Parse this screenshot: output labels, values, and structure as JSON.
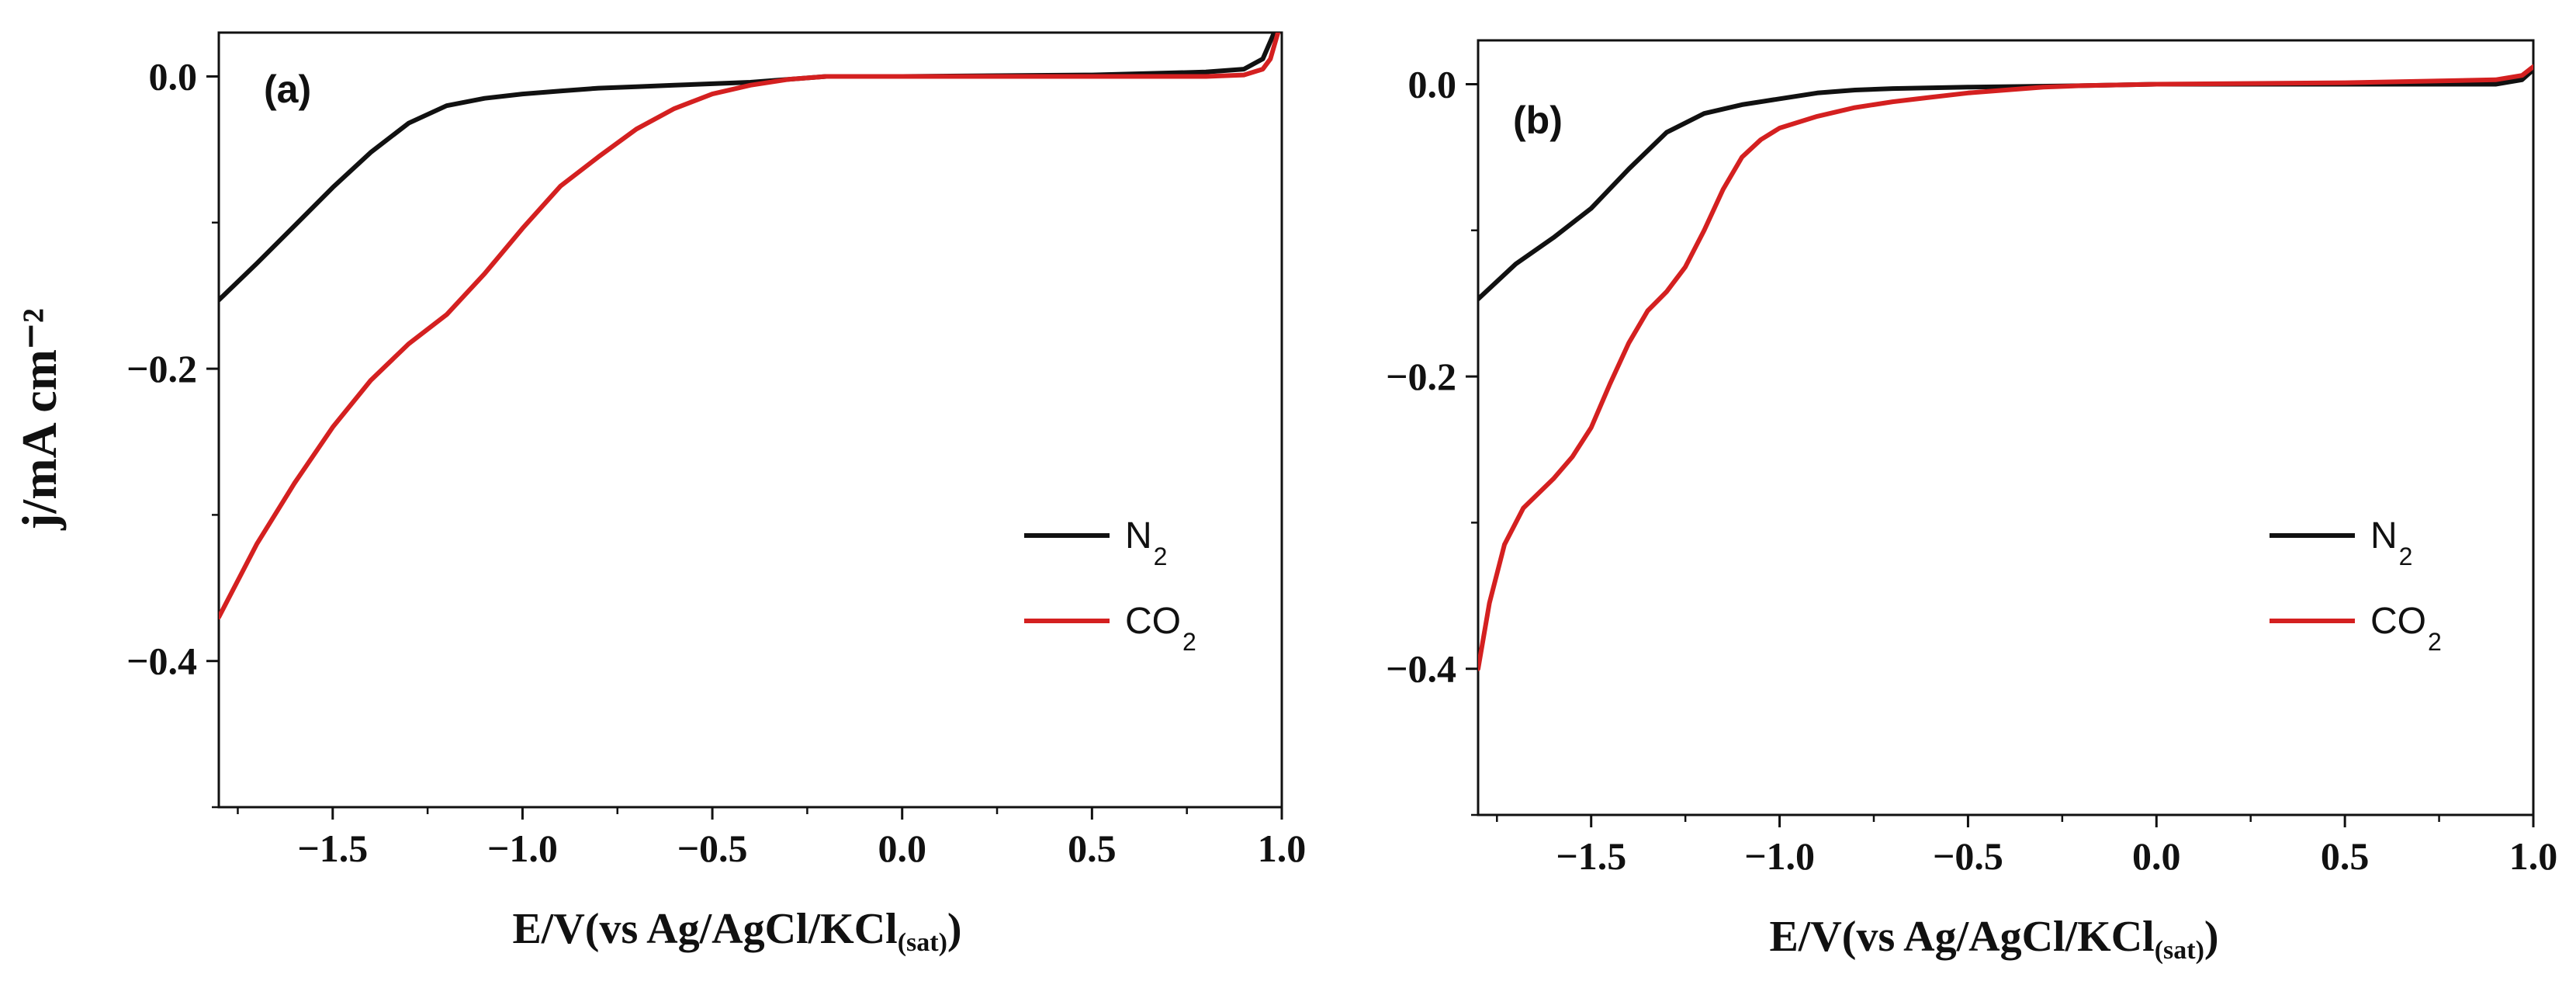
{
  "figure": {
    "shared_ylabel": "j/mA cm⁻²"
  },
  "chart_data": [
    {
      "type": "line",
      "panel_label": "(a)",
      "xlabel": "E/V(vs Ag/AgCl/KCl",
      "xlabel_sub": "(sat)",
      "xlabel_end": ")",
      "ylabel": "j/mA cm⁻²",
      "xlim": [
        -1.8,
        1.0
      ],
      "ylim": [
        -0.5,
        0.03
      ],
      "xticks": [
        -1.5,
        -1.0,
        -0.5,
        0.0,
        0.5,
        1.0
      ],
      "xtick_labels": [
        "−1.5",
        "−1.0",
        "−0.5",
        "0.0",
        "0.5",
        "1.0"
      ],
      "yticks": [
        0.0,
        -0.2,
        -0.4
      ],
      "ytick_labels": [
        "0.0",
        "−0.2",
        "−0.4"
      ],
      "legend": {
        "position": "right-center"
      },
      "series": [
        {
          "name": "N",
          "name_sub": "2",
          "color": "#111111",
          "points": [
            [
              -1.8,
              -0.153
            ],
            [
              -1.7,
              -0.128
            ],
            [
              -1.6,
              -0.102
            ],
            [
              -1.5,
              -0.076
            ],
            [
              -1.4,
              -0.052
            ],
            [
              -1.3,
              -0.032
            ],
            [
              -1.2,
              -0.02
            ],
            [
              -1.1,
              -0.015
            ],
            [
              -1.0,
              -0.012
            ],
            [
              -0.9,
              -0.01
            ],
            [
              -0.8,
              -0.008
            ],
            [
              -0.7,
              -0.007
            ],
            [
              -0.6,
              -0.006
            ],
            [
              -0.5,
              -0.005
            ],
            [
              -0.4,
              -0.004
            ],
            [
              -0.3,
              -0.002
            ],
            [
              -0.2,
              0.0
            ],
            [
              0.0,
              0.0
            ],
            [
              0.5,
              0.001
            ],
            [
              0.8,
              0.003
            ],
            [
              0.9,
              0.005
            ],
            [
              0.95,
              0.012
            ],
            [
              0.98,
              0.03
            ]
          ]
        },
        {
          "name": "CO",
          "name_sub": "2",
          "color": "#d42020",
          "points": [
            [
              -1.8,
              -0.37
            ],
            [
              -1.75,
              -0.345
            ],
            [
              -1.7,
              -0.32
            ],
            [
              -1.6,
              -0.278
            ],
            [
              -1.5,
              -0.24
            ],
            [
              -1.4,
              -0.208
            ],
            [
              -1.3,
              -0.183
            ],
            [
              -1.2,
              -0.163
            ],
            [
              -1.1,
              -0.135
            ],
            [
              -1.0,
              -0.104
            ],
            [
              -0.9,
              -0.075
            ],
            [
              -0.8,
              -0.055
            ],
            [
              -0.7,
              -0.036
            ],
            [
              -0.6,
              -0.022
            ],
            [
              -0.5,
              -0.012
            ],
            [
              -0.4,
              -0.006
            ],
            [
              -0.3,
              -0.002
            ],
            [
              -0.2,
              0.0
            ],
            [
              0.0,
              0.0
            ],
            [
              0.5,
              0.0
            ],
            [
              0.8,
              0.0
            ],
            [
              0.9,
              0.001
            ],
            [
              0.95,
              0.005
            ],
            [
              0.97,
              0.012
            ],
            [
              0.99,
              0.03
            ]
          ]
        }
      ]
    },
    {
      "type": "line",
      "panel_label": "(b)",
      "xlabel": "E/V(vs Ag/AgCl/KCl",
      "xlabel_sub": "(sat)",
      "xlabel_end": ")",
      "ylabel": "",
      "xlim": [
        -1.8,
        1.0
      ],
      "ylim": [
        -0.5,
        0.03
      ],
      "xticks": [
        -1.5,
        -1.0,
        -0.5,
        0.0,
        0.5,
        1.0
      ],
      "xtick_labels": [
        "−1.5",
        "−1.0",
        "−0.5",
        "0.0",
        "0.5",
        "1.0"
      ],
      "yticks": [
        0.0,
        -0.2,
        -0.4
      ],
      "ytick_labels": [
        "0.0",
        "−0.2",
        "−0.4"
      ],
      "legend": {
        "position": "right-center"
      },
      "series": [
        {
          "name": "N",
          "name_sub": "2",
          "color": "#111111",
          "points": [
            [
              -1.8,
              -0.147
            ],
            [
              -1.7,
              -0.123
            ],
            [
              -1.6,
              -0.105
            ],
            [
              -1.5,
              -0.085
            ],
            [
              -1.4,
              -0.058
            ],
            [
              -1.3,
              -0.033
            ],
            [
              -1.2,
              -0.02
            ],
            [
              -1.1,
              -0.014
            ],
            [
              -1.0,
              -0.01
            ],
            [
              -0.9,
              -0.006
            ],
            [
              -0.8,
              -0.004
            ],
            [
              -0.7,
              -0.003
            ],
            [
              -0.5,
              -0.002
            ],
            [
              -0.2,
              -0.001
            ],
            [
              0.0,
              0.0
            ],
            [
              0.5,
              0.0
            ],
            [
              0.9,
              0.0
            ],
            [
              0.97,
              0.003
            ],
            [
              1.0,
              0.01
            ]
          ]
        },
        {
          "name": "CO",
          "name_sub": "2",
          "color": "#d42020",
          "points": [
            [
              -1.8,
              -0.4
            ],
            [
              -1.77,
              -0.355
            ],
            [
              -1.73,
              -0.315
            ],
            [
              -1.68,
              -0.29
            ],
            [
              -1.6,
              -0.27
            ],
            [
              -1.55,
              -0.255
            ],
            [
              -1.5,
              -0.235
            ],
            [
              -1.45,
              -0.205
            ],
            [
              -1.4,
              -0.177
            ],
            [
              -1.35,
              -0.155
            ],
            [
              -1.3,
              -0.142
            ],
            [
              -1.25,
              -0.125
            ],
            [
              -1.2,
              -0.1
            ],
            [
              -1.15,
              -0.072
            ],
            [
              -1.1,
              -0.05
            ],
            [
              -1.05,
              -0.038
            ],
            [
              -1.0,
              -0.03
            ],
            [
              -0.9,
              -0.022
            ],
            [
              -0.8,
              -0.016
            ],
            [
              -0.7,
              -0.012
            ],
            [
              -0.6,
              -0.009
            ],
            [
              -0.5,
              -0.006
            ],
            [
              -0.4,
              -0.004
            ],
            [
              -0.3,
              -0.002
            ],
            [
              -0.2,
              -0.001
            ],
            [
              0.0,
              0.0
            ],
            [
              0.5,
              0.001
            ],
            [
              0.9,
              0.003
            ],
            [
              0.97,
              0.006
            ],
            [
              1.0,
              0.012
            ]
          ]
        }
      ]
    }
  ]
}
